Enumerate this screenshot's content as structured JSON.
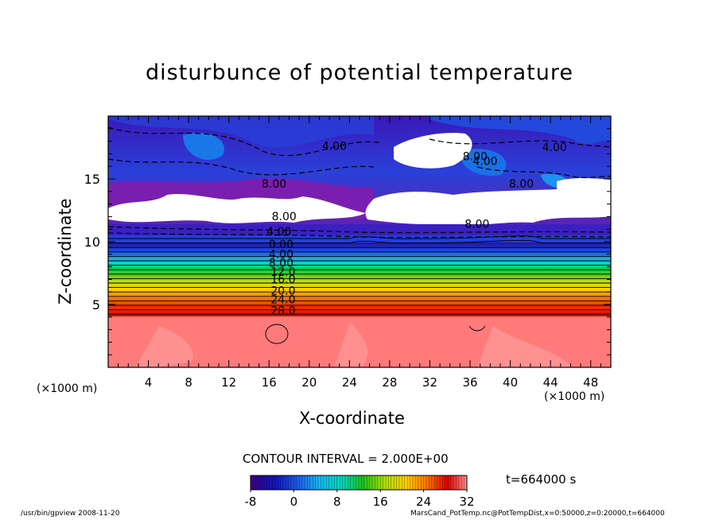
{
  "title": "disturbunce of potential temperature",
  "xlabel": "X-coordinate",
  "ylabel": "Z-coordinate",
  "x_unit_left": "(×1000 m)",
  "x_unit_right": "(×1000 m)",
  "contour_interval": "CONTOUR INTERVAL = 2.000E+00",
  "time_label": "t=664000 s",
  "footer_left": "/usr/bin/gpview   2008-11-20",
  "footer_right": "MarsCand_PotTemp.nc@PotTempDist,x=0:50000,z=0:20000,t=664000",
  "chart_data": {
    "type": "heatmap",
    "title": "disturbunce of potential temperature",
    "xlabel": "X-coordinate",
    "ylabel": "Z-coordinate",
    "xlim": [
      0,
      50
    ],
    "ylim": [
      0,
      20
    ],
    "x_ticks": [
      4,
      8,
      12,
      16,
      20,
      24,
      28,
      32,
      36,
      40,
      44,
      48
    ],
    "y_ticks": [
      5,
      10,
      15
    ],
    "colorbar": {
      "min": -8,
      "max": 32,
      "tick_labels": [
        "-8",
        "0",
        "8",
        "16",
        "24",
        "32"
      ],
      "colors": [
        "#3a0080",
        "#2030e0",
        "#1e90ff",
        "#00d8d8",
        "#20c020",
        "#b0e000",
        "#ffd000",
        "#ff7000",
        "#e00000",
        "#ff9090"
      ]
    },
    "contour_labels": [
      {
        "x": 22.5,
        "y": 17.3,
        "text": "4.00"
      },
      {
        "x": 16.5,
        "y": 14.3,
        "text": "8.00"
      },
      {
        "x": 17.5,
        "y": 11.7,
        "text": "8.00"
      },
      {
        "x": 17.0,
        "y": 10.5,
        "text": "4.00"
      },
      {
        "x": 17.2,
        "y": 9.5,
        "text": "0.00"
      },
      {
        "x": 17.2,
        "y": 8.7,
        "text": "4.00"
      },
      {
        "x": 17.2,
        "y": 8.0,
        "text": "8.00"
      },
      {
        "x": 17.4,
        "y": 7.3,
        "text": "12.0"
      },
      {
        "x": 17.4,
        "y": 6.7,
        "text": "16.0"
      },
      {
        "x": 17.4,
        "y": 5.8,
        "text": "20.0"
      },
      {
        "x": 17.4,
        "y": 5.1,
        "text": "24.0"
      },
      {
        "x": 17.4,
        "y": 4.2,
        "text": "28.0"
      },
      {
        "x": 36.7,
        "y": 11.1,
        "text": "8.00"
      },
      {
        "x": 36.5,
        "y": 16.5,
        "text": "8.00"
      },
      {
        "x": 37.5,
        "y": 16.1,
        "text": "4.00"
      },
      {
        "x": 44.4,
        "y": 17.2,
        "text": "4.00"
      },
      {
        "x": 41.1,
        "y": 14.3,
        "text": "8.00"
      }
    ]
  }
}
